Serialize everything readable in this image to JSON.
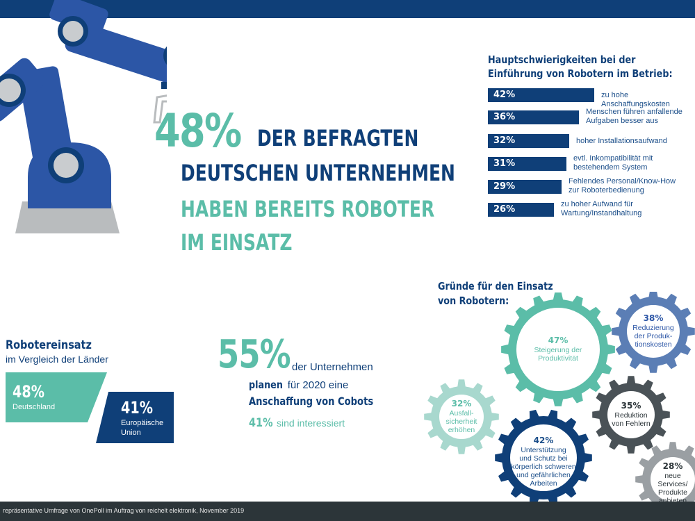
{
  "headline": {
    "percent": "48%",
    "line1": "DER BEFRAGTEN",
    "line2": "DEUTSCHEN UNTERNEHMEN",
    "line3": "HABEN BEREITS ROBOTER",
    "line4": "IM EINSATZ"
  },
  "difficulties": {
    "title_line1": "Hauptschwierigkeiten bei der",
    "title_line2": "Einführung von Robotern im Betrieb:",
    "items": [
      {
        "value": "42%",
        "pct": 42,
        "label_line1": "zu hohe Anschaffungskosten",
        "label_line2": ""
      },
      {
        "value": "36%",
        "pct": 36,
        "label_line1": "Menschen führen anfallende",
        "label_line2": "Aufgaben besser aus"
      },
      {
        "value": "32%",
        "pct": 32,
        "label_line1": "hoher Installationsaufwand",
        "label_line2": ""
      },
      {
        "value": "31%",
        "pct": 31,
        "label_line1": "evtl. Inkompatibilität mit",
        "label_line2": "bestehendem System"
      },
      {
        "value": "29%",
        "pct": 29,
        "label_line1": "Fehlendes Personal/Know-How",
        "label_line2": "zur Roboterbedienung"
      },
      {
        "value": "26%",
        "pct": 26,
        "label_line1": "zu hoher Aufwand für",
        "label_line2": "Wartung/Instandhaltung"
      }
    ]
  },
  "comparison": {
    "title": "Robotereinsatz",
    "subtitle": "im Vergleich der Länder",
    "germany_value": "48%",
    "germany_label": "Deutschland",
    "eu_value": "41%",
    "eu_label_line1": "Europäische",
    "eu_label_line2": "Union"
  },
  "cobots": {
    "percent": "55%",
    "text1": "der Unternehmen",
    "text2_bold": "planen",
    "text2_rest": "für 2020 eine",
    "text3": "Anschaffung von Cobots",
    "interested_value": "41%",
    "interested_text": "sind interessiert"
  },
  "reasons": {
    "title_line1": "Gründe für den Einsatz",
    "title_line2": "von Robotern:",
    "items": [
      {
        "value": "47%",
        "l1": "Steigerung der",
        "l2": "Produktivität",
        "l3": "",
        "l4": ""
      },
      {
        "value": "38%",
        "l1": "Reduzierung",
        "l2": "der Produk-",
        "l3": "tionskosten",
        "l4": ""
      },
      {
        "value": "35%",
        "l1": "Reduktion",
        "l2": "von Fehlern",
        "l3": "",
        "l4": ""
      },
      {
        "value": "32%",
        "l1": "Ausfall-",
        "l2": "sicherheit",
        "l3": "erhöhen",
        "l4": ""
      },
      {
        "value": "42%",
        "l1": "Unterstützung",
        "l2": "und Schutz bei",
        "l3": "körperlich schweren",
        "l4": "und gefährlichen Arbeiten"
      },
      {
        "value": "28%",
        "l1": "neue Services/",
        "l2": "Produkte",
        "l3": "anbieten",
        "l4": ""
      }
    ]
  },
  "footer": {
    "text": "repräsentative Umfrage von OnePoll im Auftrag von reichelt elektronik, November 2019"
  },
  "colors": {
    "navy": "#0f3f78",
    "teal": "#5bbda8",
    "light_teal": "#a8d8ce",
    "steel_blue": "#5b7eb5",
    "dark_gray": "#4a5257",
    "light_gray": "#9a9fa3"
  }
}
